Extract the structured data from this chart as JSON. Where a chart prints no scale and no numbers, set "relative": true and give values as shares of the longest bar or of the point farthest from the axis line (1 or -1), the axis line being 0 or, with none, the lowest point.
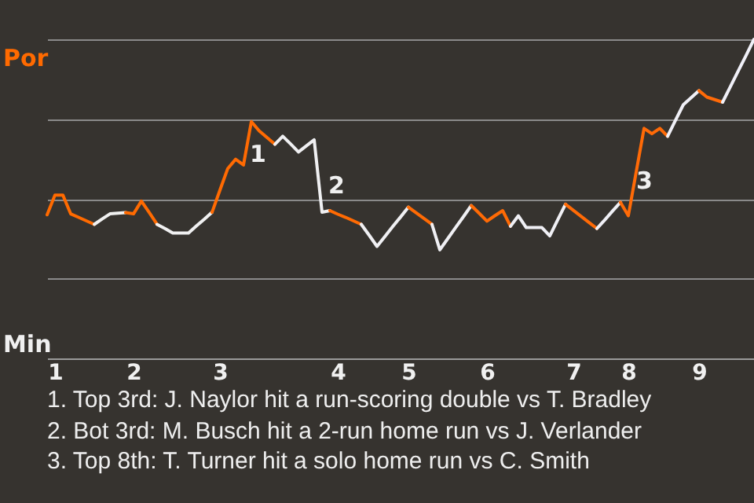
{
  "chart_data": {
    "type": "line",
    "relative": true,
    "grid": "y",
    "categories": [
      null,
      "1",
      null,
      null,
      null,
      null,
      null,
      null,
      null,
      null,
      null,
      "2",
      null,
      null,
      null,
      null,
      null,
      null,
      null,
      null,
      null,
      null,
      "3",
      null,
      null,
      null,
      null,
      null,
      null,
      null,
      null,
      null,
      null,
      null,
      null,
      null,
      null,
      "4",
      null,
      null,
      null,
      null,
      null,
      null,
      null,
      null,
      "5",
      null,
      null,
      null,
      null,
      null,
      null,
      null,
      null,
      null,
      "6",
      null,
      null,
      null,
      null,
      null,
      null,
      null,
      null,
      null,
      null,
      "7",
      null,
      null,
      null,
      null,
      null,
      null,
      "8",
      null,
      null,
      null,
      null,
      null,
      null,
      null,
      null,
      "9",
      null,
      null,
      null,
      null,
      null,
      null,
      null
    ],
    "series": [
      {
        "color": "#ff6a00",
        "values": [
          0.45,
          0.512,
          0.512,
          0.453,
          0.442,
          0.431,
          0.42,
          null,
          null,
          null,
          null,
          null,
          null,
          null,
          null,
          null,
          null,
          null,
          null,
          null,
          null,
          null,
          null,
          null,
          null,
          null,
          null,
          null,
          null,
          null,
          null,
          null,
          null,
          null,
          null,
          null,
          null,
          null,
          null,
          null,
          null,
          null,
          null,
          null,
          null,
          null,
          null,
          null,
          null,
          null,
          null,
          null,
          null,
          null,
          null,
          null,
          null,
          null,
          null,
          null,
          null,
          null,
          null,
          null,
          null,
          null,
          null,
          null,
          null,
          null,
          null,
          null,
          null,
          null,
          null,
          null,
          null,
          null,
          null,
          null,
          null,
          null,
          null,
          null,
          null,
          null,
          null,
          null,
          null,
          null,
          null
        ]
      },
      {
        "color": "#f0f0f0",
        "values": [
          null,
          null,
          null,
          null,
          null,
          null,
          0.42,
          0.437,
          0.453,
          0.455,
          0.457,
          null,
          null,
          null,
          null,
          null,
          null,
          null,
          null,
          null,
          null,
          null,
          null,
          null,
          null,
          null,
          null,
          null,
          null,
          null,
          null,
          null,
          null,
          null,
          null,
          null,
          null,
          null,
          null,
          null,
          null,
          null,
          null,
          null,
          null,
          null,
          null,
          null,
          null,
          null,
          null,
          null,
          null,
          null,
          null,
          null,
          null,
          null,
          null,
          null,
          null,
          null,
          null,
          null,
          null,
          null,
          null,
          null,
          null,
          null,
          null,
          null,
          null,
          null,
          null,
          null,
          null,
          null,
          null,
          null,
          null,
          null,
          null,
          null,
          null,
          null,
          null,
          null,
          null,
          null,
          null
        ]
      },
      {
        "color": "#ff6a01",
        "values": [
          null,
          null,
          null,
          null,
          null,
          null,
          null,
          null,
          null,
          null,
          0.457,
          0.453,
          0.493,
          0.457,
          0.42,
          null,
          null,
          null,
          null,
          null,
          null,
          null,
          null,
          null,
          null,
          null,
          null,
          null,
          null,
          null,
          null,
          null,
          null,
          null,
          null,
          null,
          null,
          null,
          null,
          null,
          null,
          null,
          null,
          null,
          null,
          null,
          null,
          null,
          null,
          null,
          null,
          null,
          null,
          null,
          null,
          null,
          null,
          null,
          null,
          null,
          null,
          null,
          null,
          null,
          null,
          null,
          null,
          null,
          null,
          null,
          null,
          null,
          null,
          null,
          null,
          null,
          null,
          null,
          null,
          null,
          null,
          null,
          null,
          null,
          null,
          null,
          null,
          null,
          null,
          null,
          null
        ]
      },
      {
        "color": "#f0f0f1",
        "values": [
          null,
          null,
          null,
          null,
          null,
          null,
          null,
          null,
          null,
          null,
          null,
          null,
          null,
          null,
          0.42,
          0.407,
          0.393,
          0.393,
          0.393,
          0.415,
          0.436,
          0.458,
          null,
          null,
          null,
          null,
          null,
          null,
          null,
          null,
          null,
          null,
          null,
          null,
          null,
          null,
          null,
          null,
          null,
          null,
          null,
          null,
          null,
          null,
          null,
          null,
          null,
          null,
          null,
          null,
          null,
          null,
          null,
          null,
          null,
          null,
          null,
          null,
          null,
          null,
          null,
          null,
          null,
          null,
          null,
          null,
          null,
          null,
          null,
          null,
          null,
          null,
          null,
          null,
          null,
          null,
          null,
          null,
          null,
          null,
          null,
          null,
          null,
          null,
          null,
          null,
          null,
          null,
          null,
          null,
          null
        ]
      },
      {
        "color": "#ff6a02",
        "values": [
          null,
          null,
          null,
          null,
          null,
          null,
          null,
          null,
          null,
          null,
          null,
          null,
          null,
          null,
          null,
          null,
          null,
          null,
          null,
          null,
          null,
          0.458,
          0.527,
          0.595,
          0.624,
          0.606,
          0.742,
          0.713,
          0.692,
          0.671,
          null,
          null,
          null,
          null,
          null,
          null,
          null,
          null,
          null,
          null,
          null,
          null,
          null,
          null,
          null,
          null,
          null,
          null,
          null,
          null,
          null,
          null,
          null,
          null,
          null,
          null,
          null,
          null,
          null,
          null,
          null,
          null,
          null,
          null,
          null,
          null,
          null,
          null,
          null,
          null,
          null,
          null,
          null,
          null,
          null,
          null,
          null,
          null,
          null,
          null,
          null,
          null,
          null,
          null,
          null,
          null,
          null,
          null,
          null,
          null,
          null
        ]
      },
      {
        "color": "#f0f0f2",
        "values": [
          null,
          null,
          null,
          null,
          null,
          null,
          null,
          null,
          null,
          null,
          null,
          null,
          null,
          null,
          null,
          null,
          null,
          null,
          null,
          null,
          null,
          null,
          null,
          null,
          null,
          null,
          null,
          null,
          null,
          0.671,
          0.696,
          0.672,
          0.647,
          0.666,
          0.685,
          0.458,
          0.463,
          null,
          null,
          null,
          null,
          null,
          null,
          null,
          null,
          null,
          null,
          null,
          null,
          null,
          null,
          null,
          null,
          null,
          null,
          null,
          null,
          null,
          null,
          null,
          null,
          null,
          null,
          null,
          null,
          null,
          null,
          null,
          null,
          null,
          null,
          null,
          null,
          null,
          null,
          null,
          null,
          null,
          null,
          null,
          null,
          null,
          null,
          null,
          null,
          null,
          null,
          null,
          null,
          null,
          null
        ]
      },
      {
        "color": "#ff6a03",
        "values": [
          null,
          null,
          null,
          null,
          null,
          null,
          null,
          null,
          null,
          null,
          null,
          null,
          null,
          null,
          null,
          null,
          null,
          null,
          null,
          null,
          null,
          null,
          null,
          null,
          null,
          null,
          null,
          null,
          null,
          null,
          null,
          null,
          null,
          null,
          null,
          null,
          0.463,
          0.452,
          0.442,
          0.431,
          0.42,
          null,
          null,
          null,
          null,
          null,
          null,
          null,
          null,
          null,
          null,
          null,
          null,
          null,
          null,
          null,
          null,
          null,
          null,
          null,
          null,
          null,
          null,
          null,
          null,
          null,
          null,
          null,
          null,
          null,
          null,
          null,
          null,
          null,
          null,
          null,
          null,
          null,
          null,
          null,
          null,
          null,
          null,
          null,
          null,
          null,
          null,
          null,
          null,
          null,
          null
        ]
      },
      {
        "color": "#f0f0f3",
        "values": [
          null,
          null,
          null,
          null,
          null,
          null,
          null,
          null,
          null,
          null,
          null,
          null,
          null,
          null,
          null,
          null,
          null,
          null,
          null,
          null,
          null,
          null,
          null,
          null,
          null,
          null,
          null,
          null,
          null,
          null,
          null,
          null,
          null,
          null,
          null,
          null,
          null,
          null,
          null,
          null,
          0.42,
          0.386,
          0.351,
          0.382,
          0.413,
          0.443,
          0.474,
          null,
          null,
          null,
          null,
          null,
          null,
          null,
          null,
          null,
          null,
          null,
          null,
          null,
          null,
          null,
          null,
          null,
          null,
          null,
          null,
          null,
          null,
          null,
          null,
          null,
          null,
          null,
          null,
          null,
          null,
          null,
          null,
          null,
          null,
          null,
          null,
          null,
          null,
          null,
          null,
          null,
          null,
          null,
          null
        ]
      },
      {
        "color": "#ff6a04",
        "values": [
          null,
          null,
          null,
          null,
          null,
          null,
          null,
          null,
          null,
          null,
          null,
          null,
          null,
          null,
          null,
          null,
          null,
          null,
          null,
          null,
          null,
          null,
          null,
          null,
          null,
          null,
          null,
          null,
          null,
          null,
          null,
          null,
          null,
          null,
          null,
          null,
          null,
          null,
          null,
          null,
          null,
          null,
          null,
          null,
          null,
          null,
          0.474,
          0.456,
          0.438,
          0.42,
          null,
          null,
          null,
          null,
          null,
          null,
          null,
          null,
          null,
          null,
          null,
          null,
          null,
          null,
          null,
          null,
          null,
          null,
          null,
          null,
          null,
          null,
          null,
          null,
          null,
          null,
          null,
          null,
          null,
          null,
          null,
          null,
          null,
          null,
          null,
          null,
          null,
          null,
          null,
          null,
          null
        ]
      },
      {
        "color": "#f0f0f4",
        "values": [
          null,
          null,
          null,
          null,
          null,
          null,
          null,
          null,
          null,
          null,
          null,
          null,
          null,
          null,
          null,
          null,
          null,
          null,
          null,
          null,
          null,
          null,
          null,
          null,
          null,
          null,
          null,
          null,
          null,
          null,
          null,
          null,
          null,
          null,
          null,
          null,
          null,
          null,
          null,
          null,
          null,
          null,
          null,
          null,
          null,
          null,
          null,
          null,
          null,
          0.42,
          0.34,
          0.375,
          0.41,
          0.444,
          0.479,
          null,
          null,
          null,
          null,
          null,
          null,
          null,
          null,
          null,
          null,
          null,
          null,
          null,
          null,
          null,
          null,
          null,
          null,
          null,
          null,
          null,
          null,
          null,
          null,
          null,
          null,
          null,
          null,
          null,
          null,
          null,
          null,
          null,
          null,
          null,
          null
        ]
      },
      {
        "color": "#ff6a05",
        "values": [
          null,
          null,
          null,
          null,
          null,
          null,
          null,
          null,
          null,
          null,
          null,
          null,
          null,
          null,
          null,
          null,
          null,
          null,
          null,
          null,
          null,
          null,
          null,
          null,
          null,
          null,
          null,
          null,
          null,
          null,
          null,
          null,
          null,
          null,
          null,
          null,
          null,
          null,
          null,
          null,
          null,
          null,
          null,
          null,
          null,
          null,
          null,
          null,
          null,
          null,
          null,
          null,
          null,
          null,
          0.479,
          0.455,
          0.43,
          0.447,
          0.463,
          0.414,
          null,
          null,
          null,
          null,
          null,
          null,
          null,
          null,
          null,
          null,
          null,
          null,
          null,
          null,
          null,
          null,
          null,
          null,
          null,
          null,
          null,
          null,
          null,
          null,
          null,
          null,
          null,
          null,
          null,
          null,
          null
        ]
      },
      {
        "color": "#f0f0f5",
        "values": [
          null,
          null,
          null,
          null,
          null,
          null,
          null,
          null,
          null,
          null,
          null,
          null,
          null,
          null,
          null,
          null,
          null,
          null,
          null,
          null,
          null,
          null,
          null,
          null,
          null,
          null,
          null,
          null,
          null,
          null,
          null,
          null,
          null,
          null,
          null,
          null,
          null,
          null,
          null,
          null,
          null,
          null,
          null,
          null,
          null,
          null,
          null,
          null,
          null,
          null,
          null,
          null,
          null,
          null,
          null,
          null,
          null,
          null,
          null,
          0.414,
          0.447,
          0.41,
          0.41,
          0.41,
          0.384,
          0.434,
          0.483,
          null,
          null,
          null,
          null,
          null,
          null,
          null,
          null,
          null,
          null,
          null,
          null,
          null,
          null,
          null,
          null,
          null,
          null,
          null,
          null,
          null,
          null,
          null,
          null
        ]
      },
      {
        "color": "#ff6a06",
        "values": [
          null,
          null,
          null,
          null,
          null,
          null,
          null,
          null,
          null,
          null,
          null,
          null,
          null,
          null,
          null,
          null,
          null,
          null,
          null,
          null,
          null,
          null,
          null,
          null,
          null,
          null,
          null,
          null,
          null,
          null,
          null,
          null,
          null,
          null,
          null,
          null,
          null,
          null,
          null,
          null,
          null,
          null,
          null,
          null,
          null,
          null,
          null,
          null,
          null,
          null,
          null,
          null,
          null,
          null,
          null,
          null,
          null,
          null,
          null,
          null,
          null,
          null,
          null,
          null,
          null,
          null,
          0.483,
          0.464,
          0.445,
          0.426,
          0.407,
          null,
          null,
          null,
          null,
          null,
          null,
          null,
          null,
          null,
          null,
          null,
          null,
          null,
          null,
          null,
          null,
          null,
          null,
          null,
          null
        ]
      },
      {
        "color": "#f0f0f6",
        "values": [
          null,
          null,
          null,
          null,
          null,
          null,
          null,
          null,
          null,
          null,
          null,
          null,
          null,
          null,
          null,
          null,
          null,
          null,
          null,
          null,
          null,
          null,
          null,
          null,
          null,
          null,
          null,
          null,
          null,
          null,
          null,
          null,
          null,
          null,
          null,
          null,
          null,
          null,
          null,
          null,
          null,
          null,
          null,
          null,
          null,
          null,
          null,
          null,
          null,
          null,
          null,
          null,
          null,
          null,
          null,
          null,
          null,
          null,
          null,
          null,
          null,
          null,
          null,
          null,
          null,
          null,
          null,
          null,
          null,
          null,
          0.407,
          0.434,
          0.462,
          0.489,
          null,
          null,
          null,
          null,
          null,
          null,
          null,
          null,
          null,
          null,
          null,
          null,
          null,
          null,
          null,
          null,
          null
        ]
      },
      {
        "color": "#ff6a07",
        "values": [
          null,
          null,
          null,
          null,
          null,
          null,
          null,
          null,
          null,
          null,
          null,
          null,
          null,
          null,
          null,
          null,
          null,
          null,
          null,
          null,
          null,
          null,
          null,
          null,
          null,
          null,
          null,
          null,
          null,
          null,
          null,
          null,
          null,
          null,
          null,
          null,
          null,
          null,
          null,
          null,
          null,
          null,
          null,
          null,
          null,
          null,
          null,
          null,
          null,
          null,
          null,
          null,
          null,
          null,
          null,
          null,
          null,
          null,
          null,
          null,
          null,
          null,
          null,
          null,
          null,
          null,
          null,
          null,
          null,
          null,
          null,
          null,
          null,
          0.489,
          0.447,
          0.584,
          0.721,
          0.704,
          0.721,
          0.696,
          null,
          null,
          null,
          null,
          null,
          null,
          null,
          null,
          null,
          null,
          null
        ]
      },
      {
        "color": "#f0f0f7",
        "values": [
          null,
          null,
          null,
          null,
          null,
          null,
          null,
          null,
          null,
          null,
          null,
          null,
          null,
          null,
          null,
          null,
          null,
          null,
          null,
          null,
          null,
          null,
          null,
          null,
          null,
          null,
          null,
          null,
          null,
          null,
          null,
          null,
          null,
          null,
          null,
          null,
          null,
          null,
          null,
          null,
          null,
          null,
          null,
          null,
          null,
          null,
          null,
          null,
          null,
          null,
          null,
          null,
          null,
          null,
          null,
          null,
          null,
          null,
          null,
          null,
          null,
          null,
          null,
          null,
          null,
          null,
          null,
          null,
          null,
          null,
          null,
          null,
          null,
          null,
          null,
          null,
          null,
          null,
          null,
          0.696,
          0.746,
          0.795,
          0.817,
          0.839,
          null,
          null,
          null,
          null,
          null,
          null,
          null
        ]
      },
      {
        "color": "#ff6a08",
        "values": [
          null,
          null,
          null,
          null,
          null,
          null,
          null,
          null,
          null,
          null,
          null,
          null,
          null,
          null,
          null,
          null,
          null,
          null,
          null,
          null,
          null,
          null,
          null,
          null,
          null,
          null,
          null,
          null,
          null,
          null,
          null,
          null,
          null,
          null,
          null,
          null,
          null,
          null,
          null,
          null,
          null,
          null,
          null,
          null,
          null,
          null,
          null,
          null,
          null,
          null,
          null,
          null,
          null,
          null,
          null,
          null,
          null,
          null,
          null,
          null,
          null,
          null,
          null,
          null,
          null,
          null,
          null,
          null,
          null,
          null,
          null,
          null,
          null,
          null,
          null,
          null,
          null,
          null,
          null,
          null,
          null,
          null,
          null,
          0.839,
          0.819,
          0.811,
          0.803,
          null,
          null,
          null,
          null
        ]
      },
      {
        "color": "#f0f0f8",
        "values": [
          null,
          null,
          null,
          null,
          null,
          null,
          null,
          null,
          null,
          null,
          null,
          null,
          null,
          null,
          null,
          null,
          null,
          null,
          null,
          null,
          null,
          null,
          null,
          null,
          null,
          null,
          null,
          null,
          null,
          null,
          null,
          null,
          null,
          null,
          null,
          null,
          null,
          null,
          null,
          null,
          null,
          null,
          null,
          null,
          null,
          null,
          null,
          null,
          null,
          null,
          null,
          null,
          null,
          null,
          null,
          null,
          null,
          null,
          null,
          null,
          null,
          null,
          null,
          null,
          null,
          null,
          null,
          null,
          null,
          null,
          null,
          null,
          null,
          null,
          null,
          null,
          null,
          null,
          null,
          null,
          null,
          null,
          null,
          null,
          null,
          null,
          0.803,
          0.852,
          0.901,
          0.95,
          1
        ]
      }
    ],
    "annotations": [
      "Por",
      "Min",
      "1",
      "2",
      "3",
      "1. Top 3rd: J. Naylor hit a run-scoring double vs T. Bradley",
      "2. Bot 3rd: M. Busch hit a 2-run home run vs J. Verlander",
      "3. Top 8th: T. Turner hit a solo home run vs C. Smith"
    ]
  }
}
